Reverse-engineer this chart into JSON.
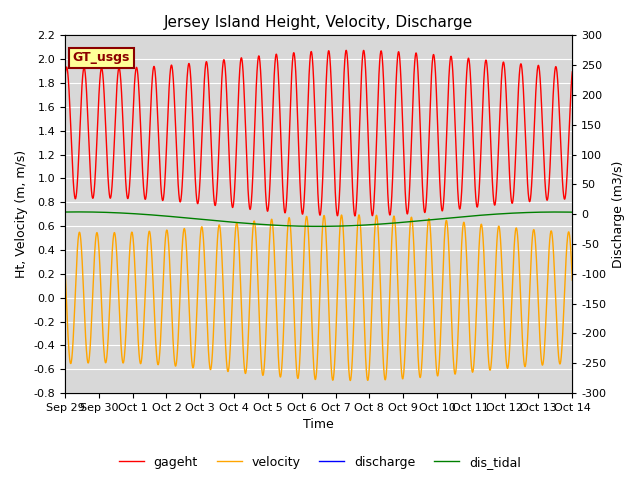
{
  "title": "Jersey Island Height, Velocity, Discharge",
  "ylabel_left": "Ht, Velocity (m, m/s)",
  "ylabel_right": "Discharge (m3/s)",
  "xlabel": "Time",
  "ylim_left": [
    -0.8,
    2.2
  ],
  "ylim_right": [
    -300,
    300
  ],
  "yticks_left": [
    -0.8,
    -0.6,
    -0.4,
    -0.2,
    0.0,
    0.2,
    0.4,
    0.6,
    0.8,
    1.0,
    1.2,
    1.4,
    1.6,
    1.8,
    2.0,
    2.2
  ],
  "yticks_right": [
    -300,
    -250,
    -200,
    -150,
    -100,
    -50,
    0,
    50,
    100,
    150,
    200,
    250,
    300
  ],
  "xtick_labels": [
    "Sep 29",
    "Sep 30",
    "Oct 1",
    "Oct 2",
    "Oct 3",
    "Oct 4",
    "Oct 5",
    "Oct 6",
    "Oct 7",
    "Oct 8",
    "Oct 9",
    "Oct 10",
    "Oct 11",
    "Oct 12",
    "Oct 13",
    "Oct 14"
  ],
  "colors": {
    "gageht": "red",
    "velocity": "orange",
    "discharge": "blue",
    "dis_tidal": "green"
  },
  "legend_labels": [
    "gageht",
    "velocity",
    "discharge",
    "dis_tidal"
  ],
  "gt_usgs_label": "GT_usgs",
  "gt_usgs_bg": "#FFFF99",
  "gt_usgs_edgecolor": "#8B0000",
  "background_color": "#D8D8D8",
  "title_fontsize": 11,
  "axis_fontsize": 9,
  "tick_fontsize": 8,
  "legend_fontsize": 9,
  "tidal_period_hours": 12.4,
  "num_days": 15,
  "line_width": 1.0,
  "grid_color": "white",
  "grid_linewidth": 0.8,
  "figwidth": 6.4,
  "figheight": 4.8,
  "dpi": 100
}
